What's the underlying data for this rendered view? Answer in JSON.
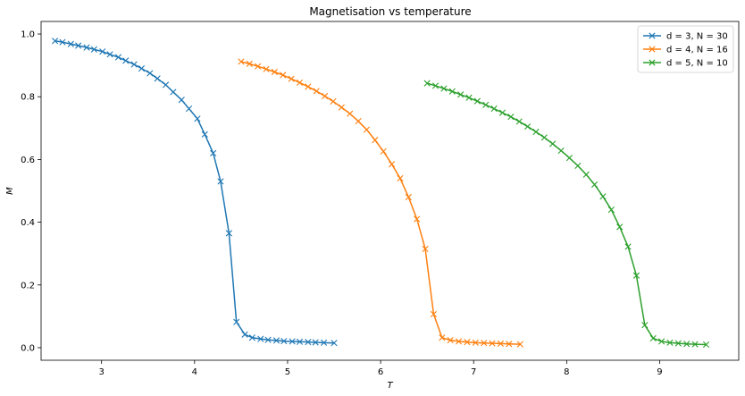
{
  "chart_data": {
    "type": "line",
    "title": "Magnetisation vs temperature",
    "xlabel": "T",
    "ylabel": "M",
    "xlim": [
      2.35,
      9.85
    ],
    "ylim": [
      -0.04,
      1.04
    ],
    "xticks": [
      3,
      4,
      5,
      6,
      7,
      8,
      9
    ],
    "yticks": [
      0.0,
      0.2,
      0.4,
      0.6,
      0.8,
      1.0
    ],
    "grid": false,
    "legend_position": "top-right",
    "marker": "x",
    "series": [
      {
        "name": "d = 3, N = 30",
        "color": "#1f77b4",
        "x": [
          2.5,
          2.58,
          2.67,
          2.75,
          2.84,
          2.92,
          3.01,
          3.09,
          3.18,
          3.26,
          3.35,
          3.43,
          3.52,
          3.6,
          3.69,
          3.77,
          3.86,
          3.94,
          4.03,
          4.11,
          4.2,
          4.28,
          4.37,
          4.45,
          4.54,
          4.62,
          4.71,
          4.79,
          4.88,
          4.96,
          5.05,
          5.13,
          5.22,
          5.3,
          5.39,
          5.5
        ],
        "y": [
          0.978,
          0.974,
          0.968,
          0.963,
          0.957,
          0.951,
          0.944,
          0.935,
          0.926,
          0.915,
          0.903,
          0.89,
          0.875,
          0.858,
          0.838,
          0.815,
          0.79,
          0.762,
          0.73,
          0.68,
          0.62,
          0.53,
          0.365,
          0.082,
          0.042,
          0.032,
          0.028,
          0.025,
          0.023,
          0.021,
          0.02,
          0.019,
          0.018,
          0.017,
          0.016,
          0.015
        ]
      },
      {
        "name": "d = 4, N = 16",
        "color": "#ff7f0e",
        "x": [
          4.5,
          4.59,
          4.68,
          4.77,
          4.86,
          4.95,
          5.04,
          5.13,
          5.22,
          5.31,
          5.4,
          5.49,
          5.58,
          5.67,
          5.76,
          5.85,
          5.94,
          6.03,
          6.12,
          6.21,
          6.3,
          6.39,
          6.48,
          6.57,
          6.66,
          6.75,
          6.84,
          6.93,
          7.02,
          7.11,
          7.2,
          7.29,
          7.38,
          7.5
        ],
        "y": [
          0.912,
          0.905,
          0.897,
          0.888,
          0.879,
          0.869,
          0.857,
          0.845,
          0.832,
          0.818,
          0.802,
          0.785,
          0.766,
          0.746,
          0.722,
          0.695,
          0.662,
          0.626,
          0.585,
          0.54,
          0.48,
          0.41,
          0.315,
          0.107,
          0.032,
          0.024,
          0.02,
          0.018,
          0.016,
          0.015,
          0.014,
          0.013,
          0.012,
          0.011
        ]
      },
      {
        "name": "d = 5, N = 10",
        "color": "#2ca02c",
        "x": [
          6.5,
          6.59,
          6.68,
          6.77,
          6.86,
          6.95,
          7.04,
          7.13,
          7.22,
          7.31,
          7.4,
          7.49,
          7.58,
          7.67,
          7.76,
          7.85,
          7.94,
          8.03,
          8.12,
          8.21,
          8.3,
          8.39,
          8.48,
          8.57,
          8.66,
          8.75,
          8.84,
          8.93,
          9.02,
          9.11,
          9.2,
          9.29,
          9.38,
          9.5
        ],
        "y": [
          0.843,
          0.835,
          0.826,
          0.817,
          0.807,
          0.797,
          0.786,
          0.774,
          0.762,
          0.749,
          0.736,
          0.721,
          0.705,
          0.688,
          0.67,
          0.65,
          0.628,
          0.605,
          0.58,
          0.552,
          0.52,
          0.482,
          0.44,
          0.385,
          0.322,
          0.23,
          0.072,
          0.03,
          0.02,
          0.016,
          0.014,
          0.012,
          0.011,
          0.01
        ]
      }
    ]
  }
}
